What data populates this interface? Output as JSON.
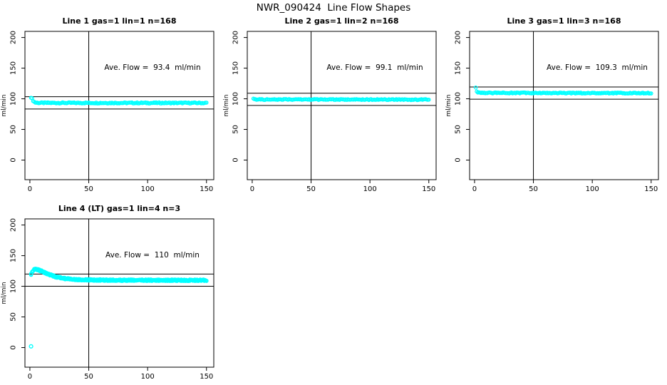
{
  "page": {
    "title": "NWR_090424  Line Flow Shapes"
  },
  "colors": {
    "background": "#FFFFFF",
    "point": "#00FFFF",
    "axis": "#000000",
    "text": "#000000"
  },
  "chart_data": {
    "type": "scatter",
    "title": "NWR_090424  Line Flow Shapes",
    "layout": {
      "rows": 2,
      "cols": 3,
      "grid": false,
      "legend": "none",
      "xlim": [
        -4.2,
        156.2
      ],
      "ylim": [
        -32,
        210
      ],
      "x_ticks": [
        0,
        50,
        100,
        150
      ],
      "y_ticks": [
        0,
        50,
        100,
        150,
        200
      ],
      "ylabel": "ml/min",
      "xlabel": "",
      "vline_x": 50,
      "marker": "open-circle",
      "marker_color": "#00FFFF"
    },
    "panels": [
      {
        "title": "Line 1 gas=1 lin=1 n=168",
        "annotation": "Ave. Flow =  93.4  ml/min",
        "ave_flow": 93.4,
        "n": 168,
        "hlines": [
          103.4,
          83.4
        ],
        "runs": 1,
        "jitter": 0.9,
        "x_start": 1,
        "x_end": 150,
        "keypoints": [
          [
            1,
            102.5
          ],
          [
            1.9,
            100
          ],
          [
            2.8,
            97
          ],
          [
            3.7,
            95
          ],
          [
            4.6,
            94
          ],
          [
            5.5,
            93.6
          ],
          [
            8,
            93.3
          ],
          [
            150,
            93.2
          ]
        ],
        "outliers": []
      },
      {
        "title": "Line 2 gas=1 lin=2 n=168",
        "annotation": "Ave. Flow =  99.1  ml/min",
        "ave_flow": 99.1,
        "n": 168,
        "hlines": [
          109.1,
          89.1
        ],
        "runs": 1,
        "jitter": 0.8,
        "x_start": 1,
        "x_end": 150,
        "keypoints": [
          [
            1,
            101
          ],
          [
            1.9,
            99.7
          ],
          [
            2.8,
            99.2
          ],
          [
            5,
            98.9
          ],
          [
            150,
            98.6
          ]
        ],
        "outliers": []
      },
      {
        "title": "Line 3 gas=1 lin=3 n=168",
        "annotation": "Ave. Flow =  109.3  ml/min",
        "ave_flow": 109.3,
        "n": 168,
        "hlines": [
          119.3,
          99.3
        ],
        "runs": 1,
        "jitter": 0.8,
        "x_start": 1,
        "x_end": 150,
        "keypoints": [
          [
            1,
            119
          ],
          [
            1.9,
            112.5
          ],
          [
            2.8,
            110.3
          ],
          [
            5,
            109.6
          ],
          [
            150,
            109.2
          ]
        ],
        "outliers": []
      },
      {
        "title": "Line 4 (LT) gas=1 lin=4 n=3",
        "annotation": "Ave. Flow =  110  ml/min",
        "ave_flow": 110,
        "n": 3,
        "hlines": [
          120,
          100
        ],
        "runs": 3,
        "jitter": 1.3,
        "x_start": 1,
        "x_end": 150,
        "keypoints": [
          [
            1,
            120
          ],
          [
            2,
            124
          ],
          [
            3,
            126.5
          ],
          [
            5,
            128
          ],
          [
            7,
            127
          ],
          [
            9,
            125.5
          ],
          [
            11,
            124
          ],
          [
            13,
            122
          ],
          [
            16,
            119.5
          ],
          [
            19,
            117.5
          ],
          [
            22,
            115.5
          ],
          [
            26,
            114
          ],
          [
            30,
            112.5
          ],
          [
            35,
            111.5
          ],
          [
            40,
            111
          ],
          [
            45,
            110.7
          ],
          [
            55,
            110.3
          ],
          [
            70,
            110
          ],
          [
            150,
            109.8
          ]
        ],
        "outliers": [
          [
            1,
            2
          ]
        ]
      }
    ]
  }
}
